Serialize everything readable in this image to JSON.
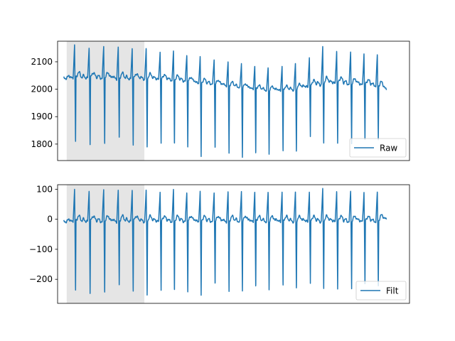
{
  "chart_data": [
    {
      "type": "line",
      "title": "",
      "xlabel": "",
      "ylabel": "",
      "ylim": [
        1740,
        2175
      ],
      "yticks": [
        1800,
        1900,
        2000,
        2100
      ],
      "xticks_visible": false,
      "shaded_region": {
        "x_start": 0.0,
        "x_end": 1.28,
        "color": "#e5e5e5"
      },
      "legend": {
        "position": "lower-right",
        "entries": [
          "Raw"
        ]
      },
      "series": [
        {
          "name": "Raw",
          "color": "#1f77b4",
          "beats": [
            {
              "t": 0.13,
              "base": 2040,
              "peak": 2160,
              "trough": 1795
            },
            {
              "t": 0.37,
              "base": 2040,
              "peak": 2155,
              "trough": 1790
            },
            {
              "t": 0.61,
              "base": 2040,
              "peak": 2155,
              "trough": 1790
            },
            {
              "t": 0.85,
              "base": 2038,
              "peak": 2155,
              "trough": 1815
            },
            {
              "t": 1.08,
              "base": 2036,
              "peak": 2150,
              "trough": 1785
            },
            {
              "t": 1.31,
              "base": 2037,
              "peak": 2147,
              "trough": 1780
            },
            {
              "t": 1.54,
              "base": 2035,
              "peak": 2140,
              "trough": 1795
            },
            {
              "t": 1.76,
              "base": 2032,
              "peak": 2135,
              "trough": 1788
            },
            {
              "t": 1.98,
              "base": 2028,
              "peak": 2130,
              "trough": 1780
            },
            {
              "t": 2.2,
              "base": 2020,
              "peak": 2118,
              "trough": 1750
            },
            {
              "t": 2.43,
              "base": 2018,
              "peak": 2112,
              "trough": 1772
            },
            {
              "t": 2.66,
              "base": 2012,
              "peak": 2100,
              "trough": 1760
            },
            {
              "t": 2.88,
              "base": 2005,
              "peak": 2095,
              "trough": 1745
            },
            {
              "t": 3.1,
              "base": 2000,
              "peak": 2085,
              "trough": 1750
            },
            {
              "t": 3.32,
              "base": 1995,
              "peak": 2080,
              "trough": 1758
            },
            {
              "t": 3.55,
              "base": 1995,
              "peak": 2085,
              "trough": 1760
            },
            {
              "t": 3.77,
              "base": 1998,
              "peak": 2095,
              "trough": 1762
            },
            {
              "t": 4.0,
              "base": 2010,
              "peak": 2120,
              "trough": 1820
            },
            {
              "t": 4.22,
              "base": 2018,
              "peak": 2150,
              "trough": 1795
            },
            {
              "t": 4.45,
              "base": 2022,
              "peak": 2145,
              "trough": 1790
            },
            {
              "t": 4.68,
              "base": 2018,
              "peak": 2138,
              "trough": 1795
            },
            {
              "t": 4.9,
              "base": 2015,
              "peak": 2132,
              "trough": 1800
            },
            {
              "t": 5.12,
              "base": 2012,
              "peak": 2125,
              "trough": 1810
            }
          ],
          "end_value": 2000
        }
      ]
    },
    {
      "type": "line",
      "title": "",
      "xlabel": "",
      "ylabel": "",
      "ylim": [
        -280,
        115
      ],
      "yticks": [
        -200,
        -100,
        0,
        100
      ],
      "xticks_visible": false,
      "shaded_region": {
        "x_start": 0.0,
        "x_end": 1.28,
        "color": "#e5e5e5"
      },
      "legend": {
        "position": "lower-right",
        "entries": [
          "Filt"
        ]
      },
      "series": [
        {
          "name": "Filt",
          "color": "#1f77b4",
          "beats": [
            {
              "t": 0.13,
              "base": -8,
              "peak": 98,
              "trough": -250
            },
            {
              "t": 0.37,
              "base": -8,
              "peak": 98,
              "trough": -255
            },
            {
              "t": 0.61,
              "base": -8,
              "peak": 98,
              "trough": -255
            },
            {
              "t": 0.85,
              "base": -8,
              "peak": 98,
              "trough": -228
            },
            {
              "t": 1.08,
              "base": -8,
              "peak": 98,
              "trough": -250
            },
            {
              "t": 1.31,
              "base": -8,
              "peak": 96,
              "trough": -262
            },
            {
              "t": 1.54,
              "base": -8,
              "peak": 95,
              "trough": -245
            },
            {
              "t": 1.76,
              "base": -8,
              "peak": 95,
              "trough": -250
            },
            {
              "t": 1.98,
              "base": -8,
              "peak": 95,
              "trough": -252
            },
            {
              "t": 2.2,
              "base": -8,
              "peak": 92,
              "trough": -258
            },
            {
              "t": 2.43,
              "base": -8,
              "peak": 93,
              "trough": -228
            },
            {
              "t": 2.66,
              "base": -8,
              "peak": 92,
              "trough": -248
            },
            {
              "t": 2.88,
              "base": -8,
              "peak": 94,
              "trough": -245
            },
            {
              "t": 3.1,
              "base": -8,
              "peak": 92,
              "trough": -240
            },
            {
              "t": 3.32,
              "base": -8,
              "peak": 92,
              "trough": -240
            },
            {
              "t": 3.55,
              "base": -8,
              "peak": 92,
              "trough": -235
            },
            {
              "t": 3.77,
              "base": -8,
              "peak": 92,
              "trough": -240
            },
            {
              "t": 4.0,
              "base": -8,
              "peak": 95,
              "trough": -220
            },
            {
              "t": 4.22,
              "base": -8,
              "peak": 98,
              "trough": -240
            },
            {
              "t": 4.45,
              "base": -8,
              "peak": 98,
              "trough": -245
            },
            {
              "t": 4.68,
              "base": -8,
              "peak": 95,
              "trough": -238
            },
            {
              "t": 4.9,
              "base": -8,
              "peak": 92,
              "trough": -232
            },
            {
              "t": 5.12,
              "base": -8,
              "peak": 90,
              "trough": -230
            }
          ],
          "end_value": 2
        }
      ]
    }
  ]
}
